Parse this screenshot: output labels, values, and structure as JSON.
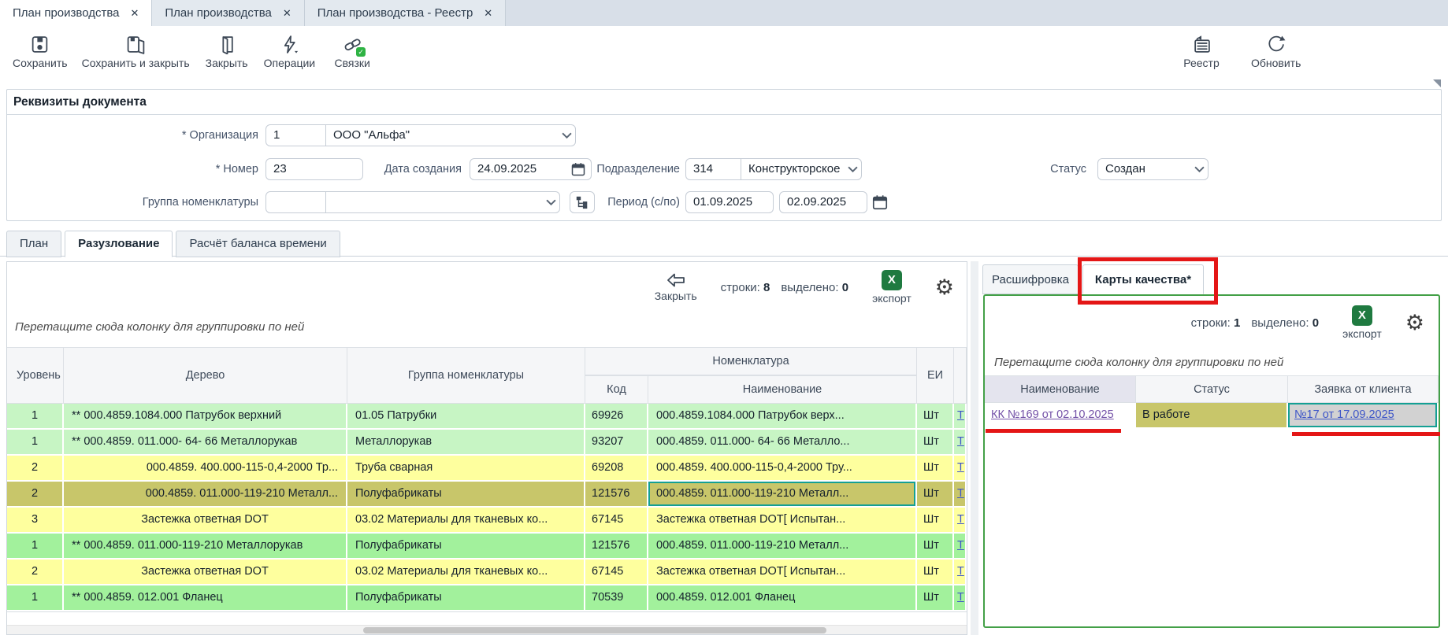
{
  "colors": {
    "annotation_red": "#e41616",
    "export_green": "#1f7a40",
    "focus_teal": "#14a094",
    "row_green_light": "#c7f5c4",
    "row_green": "#a2f19c",
    "row_yellow": "#feff9e",
    "row_olive": "#c8c66a",
    "link_blue": "#3d55c8",
    "link_purple": "#7452a8",
    "panel_green_border": "#43a047"
  },
  "window_tabs": [
    {
      "label": "План производства",
      "close": "✕",
      "active": true
    },
    {
      "label": "План производства",
      "close": "✕",
      "active": false
    },
    {
      "label": "План производства - Реестр",
      "close": "✕",
      "active": false
    }
  ],
  "toolbar": {
    "left": [
      {
        "icon": "save-icon",
        "label": "Сохранить"
      },
      {
        "icon": "save-close-icon",
        "label": "Сохранить и закрыть"
      },
      {
        "icon": "door-icon",
        "label": "Закрыть"
      },
      {
        "icon": "lightning-icon",
        "label": "Операции"
      },
      {
        "icon": "links-icon",
        "label": "Связки"
      }
    ],
    "right": [
      {
        "icon": "registry-icon",
        "label": "Реестр"
      },
      {
        "icon": "refresh-icon",
        "label": "Обновить"
      }
    ]
  },
  "requisites": {
    "title": "Реквизиты документа",
    "fields": {
      "org": {
        "label": "* Организация",
        "code": "1",
        "name": "ООО \"Альфа\""
      },
      "number": {
        "label": "* Номер",
        "value": "23"
      },
      "created": {
        "label": "Дата создания",
        "value": "24.09.2025"
      },
      "department": {
        "label": "Подразделение",
        "code": "314",
        "name": "Конструкторское бюр"
      },
      "status": {
        "label": "Статус",
        "value": "Создан"
      },
      "group": {
        "label": "Группа номенклатуры",
        "code": "",
        "name": ""
      },
      "period": {
        "label": "Период (с/по)",
        "from": "01.09.2025",
        "to": "02.09.2025"
      }
    }
  },
  "doc_tabs": [
    {
      "label": "План",
      "active": false
    },
    {
      "label": "Разузлование",
      "active": true
    },
    {
      "label": "Расчёт баланса времени",
      "active": false
    }
  ],
  "left_panel": {
    "close_label": "Закрыть",
    "rows_label": "строки:",
    "rows_count": "8",
    "selected_label": "выделено:",
    "selected_count": "0",
    "export_label": "экспорт",
    "group_hint": "Перетащите сюда колонку для группировки по ней",
    "group_header": "Номенклатура",
    "columns": [
      "Уровень",
      "Дерево",
      "Группа номенклатуры",
      "Код",
      "Наименование",
      "ЕИ"
    ],
    "rows": [
      {
        "level": "1",
        "tree": "** 000.4859.1084.000 Патрубок верхний",
        "align": "left",
        "group": "01.05 Патрубки",
        "code": "69926",
        "name": "000.4859.1084.000 Патрубок верх...",
        "unit": "Шт",
        "link": "Т",
        "color": "green-light",
        "selected": false,
        "focused": false
      },
      {
        "level": "1",
        "tree": "** 000.4859. 011.000- 64- 66 Металлорукав",
        "align": "left",
        "group": "Металлорукав",
        "code": "93207",
        "name": "000.4859. 011.000- 64- 66 Металло...",
        "unit": "Шт",
        "link": "Т",
        "color": "green-light",
        "selected": false,
        "focused": false
      },
      {
        "level": "2",
        "tree": "000.4859. 400.000-115-0,4-2000 Тр...",
        "align": "right",
        "group": "Труба сварная",
        "code": "69208",
        "name": "000.4859. 400.000-115-0,4-2000 Тру...",
        "unit": "Шт",
        "link": "Т",
        "color": "yellow",
        "selected": false,
        "focused": false
      },
      {
        "level": "2",
        "tree": "000.4859. 011.000-119-210 Металл...",
        "align": "right",
        "group": "Полуфабрикаты",
        "code": "121576",
        "name": "000.4859. 011.000-119-210 Металл...",
        "unit": "Шт",
        "link": "Т",
        "color": "olive",
        "selected": true,
        "focused": true
      },
      {
        "level": "3",
        "tree": "Застежка ответная DOT",
        "align": "center",
        "group": "03.02 Материалы для тканевых ко...",
        "code": "67145",
        "name": "Застежка ответная DOT[ Испытан...",
        "unit": "Шт",
        "link": "Т",
        "color": "yellow",
        "selected": false,
        "focused": false
      },
      {
        "level": "1",
        "tree": "** 000.4859. 011.000-119-210 Металлорукав",
        "align": "left",
        "group": "Полуфабрикаты",
        "code": "121576",
        "name": "000.4859. 011.000-119-210 Металл...",
        "unit": "Шт",
        "link": "Т",
        "color": "green",
        "selected": false,
        "focused": false
      },
      {
        "level": "2",
        "tree": "Застежка ответная DOT",
        "align": "center",
        "group": "03.02 Материалы для тканевых ко...",
        "code": "67145",
        "name": "Застежка ответная DOT[ Испытан...",
        "unit": "Шт",
        "link": "Т",
        "color": "yellow",
        "selected": false,
        "focused": false
      },
      {
        "level": "1",
        "tree": "** 000.4859. 012.001 Фланец",
        "align": "left",
        "group": "Полуфабрикаты",
        "code": "70539",
        "name": "000.4859. 012.001 Фланец",
        "unit": "Шт",
        "link": "Т",
        "color": "green",
        "selected": false,
        "focused": false
      }
    ]
  },
  "right_panel": {
    "tabs": [
      {
        "label": "Расшифровка",
        "active": false,
        "annotated": false
      },
      {
        "label": "Карты качества*",
        "active": true,
        "annotated": true
      }
    ],
    "rows_label": "строки:",
    "rows_count": "1",
    "selected_label": "выделено:",
    "selected_count": "0",
    "export_label": "экспорт",
    "group_hint": "Перетащите сюда колонку для группировки по ней",
    "columns": [
      "Наименование",
      "Статус",
      "Заявка от клиента"
    ],
    "rows": [
      {
        "name": "КК №169 от 02.10.2025",
        "status": "В работе",
        "request": "№17 от 17.09.2025"
      }
    ]
  }
}
